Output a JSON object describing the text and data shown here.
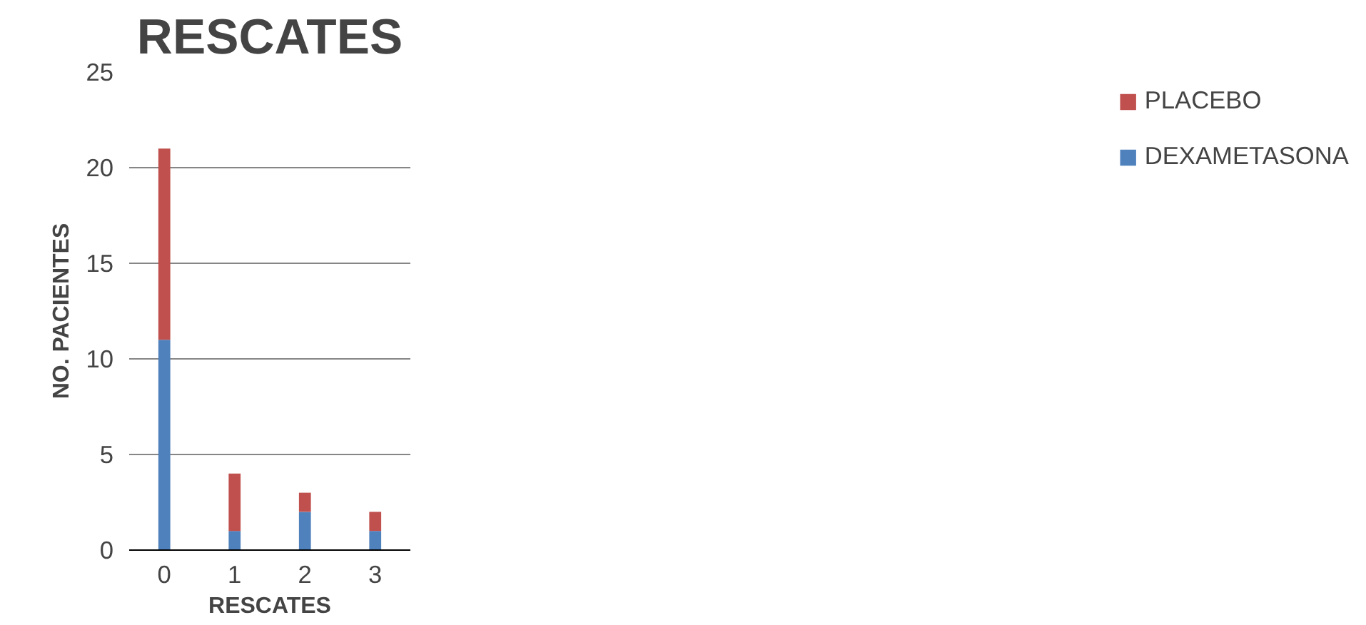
{
  "chart_data": {
    "type": "bar",
    "title": "RESCATES",
    "xlabel": "RESCATES",
    "ylabel": "NO. PACIENTES",
    "categories": [
      "0",
      "1",
      "2",
      "3"
    ],
    "stacked": true,
    "series": [
      {
        "name": "DEXAMETASONA",
        "color": "#4f81bd",
        "values": [
          11,
          1,
          2,
          1
        ]
      },
      {
        "name": "PLACEBO",
        "color": "#c0504d",
        "values": [
          10,
          3,
          1,
          1
        ]
      }
    ],
    "ylim": [
      0,
      25
    ],
    "yticks": [
      0,
      5,
      10,
      15,
      20,
      25
    ],
    "grid": "y",
    "legend": "right"
  }
}
